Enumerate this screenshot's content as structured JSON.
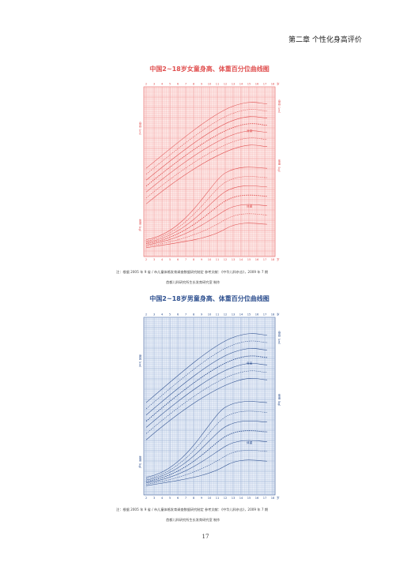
{
  "header": {
    "text": "第二章 个性化身高评价"
  },
  "girl_chart": {
    "title": "中国2~18岁女童身高、体重百分位曲线图",
    "color": "#e05050",
    "grid_color": "#f2a0a0",
    "bg": "#fde8e6",
    "age_ticks": [
      "2",
      "3",
      "4",
      "5",
      "6",
      "7",
      "8",
      "9",
      "10",
      "11",
      "12",
      "13",
      "14",
      "15",
      "16",
      "17",
      "18"
    ],
    "age_unit": "岁",
    "height_label": "身高",
    "weight_label": "体重",
    "height_axis": "身高（cm）",
    "weight_axis": "体重（kg）",
    "note_line1": "注：根据 2005 年 9 省 / 市儿童体格发育调查数据研究制定   参考文献：《中华儿科杂志》，2009 年 7 期",
    "note_line2": "首都儿科研究所生长发育研究室 制作"
  },
  "boy_chart": {
    "title": "中国2~18岁男童身高、体重百分位曲线图",
    "color": "#2d4f8f",
    "grid_color": "#9fb4d6",
    "bg": "#e6edf7",
    "age_ticks": [
      "2",
      "3",
      "4",
      "5",
      "6",
      "7",
      "8",
      "9",
      "10",
      "11",
      "12",
      "13",
      "14",
      "15",
      "16",
      "17",
      "18"
    ],
    "age_unit": "岁",
    "height_label": "身高",
    "weight_label": "体重",
    "height_axis": "身高（cm）",
    "weight_axis": "体重（kg）",
    "note_line1": "注：根据 2005 年 9 省 / 市儿童体格发育调查数据研究制定   参考文献：《中华儿科杂志》，2009 年 7 期",
    "note_line2": "首都儿科研究所生长发育研究室 制作"
  },
  "page_number": "17"
}
